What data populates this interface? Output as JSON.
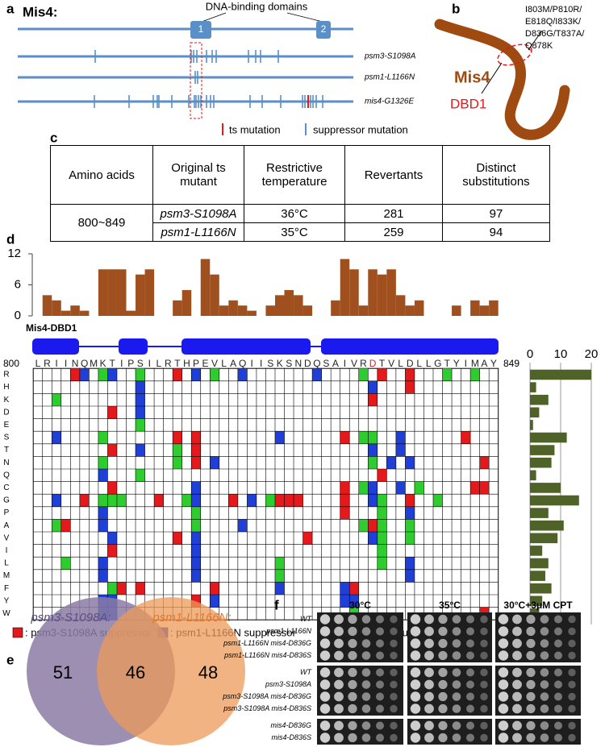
{
  "panel_a": {
    "label": "a",
    "title": "Mis4:",
    "domains_label": "DNA-binding domains",
    "domains": [
      "1",
      "2"
    ],
    "alleles": [
      "psm3-S1098A",
      "psm1-L1166N",
      "mis4-G1326E"
    ],
    "legend": [
      "ts mutation",
      "suppressor mutation"
    ]
  },
  "panel_b": {
    "label": "b",
    "protein": "Mis4",
    "domain": "DBD1",
    "mutations": [
      "I803M/P810R/",
      "E818Q/I833K/",
      "D836G/T837A/",
      "Q878K"
    ]
  },
  "panel_c": {
    "label": "c",
    "table": {
      "header": [
        "Amino acids",
        "Original ts mutant",
        "Restrictive temperature",
        "Revertants",
        "Distinct substitutions"
      ],
      "rows": [
        [
          "800~849",
          "psm3-S1098A",
          "36°C",
          281,
          97
        ],
        [
          "psm1-L1166N",
          "35°C",
          259,
          94
        ]
      ]
    }
  },
  "panel_d": {
    "label": "d",
    "structure": "Mis4-DBD1",
    "range": [
      800,
      849
    ],
    "ts_position": 36,
    "matrix": {
      "series": [
        {
          "name": ": psm3-S1098A suppressor",
          "color": "#e3191c",
          "cells": [
            [
              0,
              4
            ],
            [
              0,
              15
            ],
            [
              0,
              37
            ],
            [
              0,
              40
            ],
            [
              1,
              40
            ],
            [
              2,
              36
            ],
            [
              3,
              8
            ],
            [
              5,
              15
            ],
            [
              5,
              17
            ],
            [
              5,
              33
            ],
            [
              5,
              46
            ],
            [
              6,
              8
            ],
            [
              6,
              17
            ],
            [
              7,
              17
            ],
            [
              7,
              48
            ],
            [
              8,
              37
            ],
            [
              9,
              8
            ],
            [
              9,
              33
            ],
            [
              9,
              47
            ],
            [
              9,
              48
            ],
            [
              10,
              5
            ],
            [
              10,
              13
            ],
            [
              10,
              21
            ],
            [
              10,
              26
            ],
            [
              10,
              27
            ],
            [
              10,
              28
            ],
            [
              10,
              33
            ],
            [
              10,
              40
            ],
            [
              11,
              33
            ],
            [
              12,
              3
            ],
            [
              12,
              36
            ],
            [
              13,
              15
            ],
            [
              13,
              29
            ],
            [
              14,
              8
            ],
            [
              17,
              9
            ],
            [
              17,
              11
            ],
            [
              17,
              19
            ],
            [
              17,
              34
            ],
            [
              18,
              17
            ],
            [
              19,
              48
            ]
          ]
        },
        {
          "name": ": psm1-L1166N suppressor",
          "color": "#1f3fd6",
          "cells": [
            [
              0,
              5
            ],
            [
              0,
              8
            ],
            [
              0,
              17
            ],
            [
              0,
              22
            ],
            [
              0,
              30
            ],
            [
              1,
              11
            ],
            [
              1,
              36
            ],
            [
              2,
              11
            ],
            [
              3,
              11
            ],
            [
              5,
              2
            ],
            [
              5,
              26
            ],
            [
              5,
              39
            ],
            [
              6,
              11
            ],
            [
              6,
              36
            ],
            [
              6,
              39
            ],
            [
              7,
              19
            ],
            [
              7,
              38
            ],
            [
              7,
              40
            ],
            [
              8,
              7
            ],
            [
              9,
              17
            ],
            [
              9,
              36
            ],
            [
              9,
              39
            ],
            [
              10,
              2
            ],
            [
              10,
              17
            ],
            [
              10,
              23
            ],
            [
              10,
              36
            ],
            [
              11,
              7
            ],
            [
              11,
              40
            ],
            [
              12,
              7
            ],
            [
              12,
              22
            ],
            [
              13,
              8
            ],
            [
              13,
              17
            ],
            [
              13,
              36
            ],
            [
              14,
              17
            ],
            [
              15,
              7
            ],
            [
              15,
              17
            ],
            [
              15,
              40
            ],
            [
              16,
              7
            ],
            [
              16,
              17
            ],
            [
              16,
              40
            ],
            [
              17,
              26
            ],
            [
              17,
              33
            ],
            [
              18,
              7
            ],
            [
              18,
              8
            ],
            [
              18,
              19
            ],
            [
              18,
              33
            ],
            [
              18,
              34
            ],
            [
              19,
              7
            ],
            [
              19,
              8
            ]
          ]
        },
        {
          "name": ": overlapped suppressor",
          "color": "#2ecc2e",
          "cells": [
            [
              0,
              7
            ],
            [
              0,
              11
            ],
            [
              0,
              19
            ],
            [
              0,
              35
            ],
            [
              0,
              44
            ],
            [
              0,
              47
            ],
            [
              2,
              2
            ],
            [
              4,
              11
            ],
            [
              5,
              7
            ],
            [
              5,
              35
            ],
            [
              5,
              36
            ],
            [
              6,
              15
            ],
            [
              7,
              7
            ],
            [
              7,
              15
            ],
            [
              7,
              36
            ],
            [
              8,
              11
            ],
            [
              9,
              35
            ],
            [
              9,
              41
            ],
            [
              10,
              7
            ],
            [
              10,
              8
            ],
            [
              10,
              9
            ],
            [
              10,
              16
            ],
            [
              10,
              25
            ],
            [
              10,
              37
            ],
            [
              10,
              43
            ],
            [
              11,
              17
            ],
            [
              11,
              37
            ],
            [
              12,
              2
            ],
            [
              12,
              17
            ],
            [
              12,
              35
            ],
            [
              12,
              37
            ],
            [
              12,
              40
            ],
            [
              13,
              37
            ],
            [
              13,
              40
            ],
            [
              14,
              37
            ],
            [
              15,
              3
            ],
            [
              15,
              26
            ],
            [
              15,
              37
            ],
            [
              16,
              26
            ],
            [
              17,
              8
            ],
            [
              19,
              34
            ]
          ]
        }
      ]
    }
  },
  "chart_data": [
    {
      "type": "bar",
      "categories": [
        "L",
        "R",
        "I",
        "I",
        "N",
        "Q",
        "M",
        "K",
        "T",
        "I",
        "P",
        "S",
        "I",
        "L",
        "R",
        "T",
        "H",
        "P",
        "E",
        "V",
        "L",
        "A",
        "Q",
        "I",
        "I",
        "S",
        "K",
        "S",
        "N",
        "D",
        "Q",
        "S",
        "A",
        "I",
        "V",
        "R",
        "D",
        "T",
        "V",
        "L",
        "D",
        "L",
        "L",
        "G",
        "T",
        "Y",
        "I",
        "M",
        "A",
        "Y"
      ],
      "values": [
        0,
        4,
        3,
        1,
        2,
        1,
        0,
        9,
        9,
        9,
        1,
        8,
        9,
        0,
        0,
        3,
        5,
        0,
        11,
        8,
        2,
        3,
        2,
        1,
        0,
        2,
        4,
        5,
        4,
        2,
        0,
        0,
        3,
        11,
        9,
        2,
        9,
        8,
        9,
        4,
        2,
        3,
        0,
        0,
        0,
        2,
        0,
        3,
        2,
        3
      ],
      "color": "#a0501e",
      "ylim": [
        0,
        12
      ],
      "yticks": [
        0,
        6,
        12
      ]
    },
    {
      "type": "barh",
      "categories": [
        "R",
        "H",
        "K",
        "D",
        "E",
        "S",
        "T",
        "N",
        "Q",
        "C",
        "G",
        "P",
        "A",
        "V",
        "I",
        "L",
        "M",
        "F",
        "Y",
        "W"
      ],
      "values": [
        20,
        2,
        6,
        3,
        1,
        12,
        8,
        7,
        2,
        10,
        16,
        6,
        11,
        9,
        4,
        6,
        5,
        7,
        4,
        3
      ],
      "color": "#4f6228",
      "xlim": [
        0,
        20
      ],
      "xticks": [
        0,
        10,
        20
      ],
      "grid": true
    }
  ],
  "panel_e": {
    "label": "e",
    "sets": [
      "psm3-S1098A:",
      "psm1-L1166N:"
    ],
    "counts": [
      51,
      46,
      48
    ]
  },
  "panel_f": {
    "label": "f",
    "conditions": [
      "30°C",
      "35°C",
      "30°C+3μM CPT"
    ],
    "groups": [
      [
        "WT",
        "psm1-L1166N",
        "psm1-L1166N mis4-D836G",
        "psm1-L1166N mis4-D836S"
      ],
      [
        "WT",
        "psm3-S1098A",
        "psm3-S1098A mis4-D836G",
        "psm3-S1098A mis4-D836S"
      ],
      [
        "mis4-D836G",
        "mis4-D836S"
      ]
    ]
  }
}
